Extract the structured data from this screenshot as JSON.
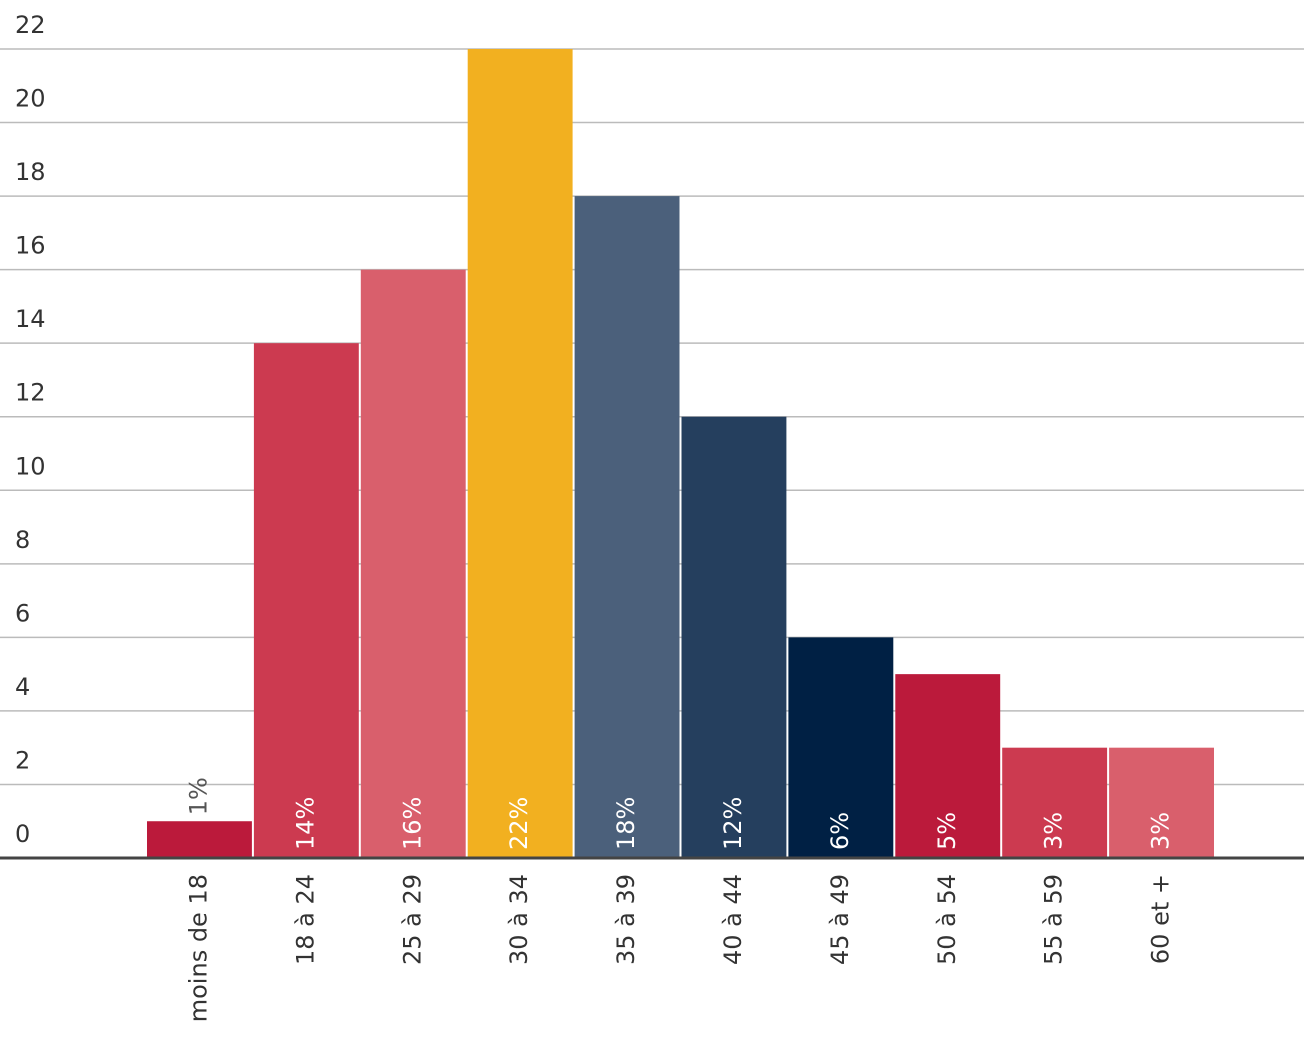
{
  "chart_data": {
    "type": "bar",
    "categories": [
      "moins de 18",
      "18 à 24",
      "25 à 29",
      "30 à 34",
      "35 à 39",
      "40 à 44",
      "45 à 49",
      "50 à 54",
      "55 à 59",
      "60 et +"
    ],
    "values": [
      1,
      14,
      16,
      22,
      18,
      12,
      6,
      5,
      3,
      3
    ],
    "value_labels": [
      "1%",
      "14%",
      "16%",
      "22%",
      "18%",
      "12%",
      "6%",
      "5%",
      "3%",
      "3%"
    ],
    "colors": [
      "#bb1a3b",
      "#cc3a50",
      "#d95f6c",
      "#f2b020",
      "#4b607b",
      "#253f5e",
      "#002044",
      "#bb1a3b",
      "#cc3a50",
      "#d95f6c"
    ],
    "ylim": [
      0,
      22
    ],
    "yticks": [
      0,
      2,
      4,
      6,
      8,
      10,
      12,
      14,
      16,
      18,
      20,
      22
    ],
    "grid": true
  }
}
